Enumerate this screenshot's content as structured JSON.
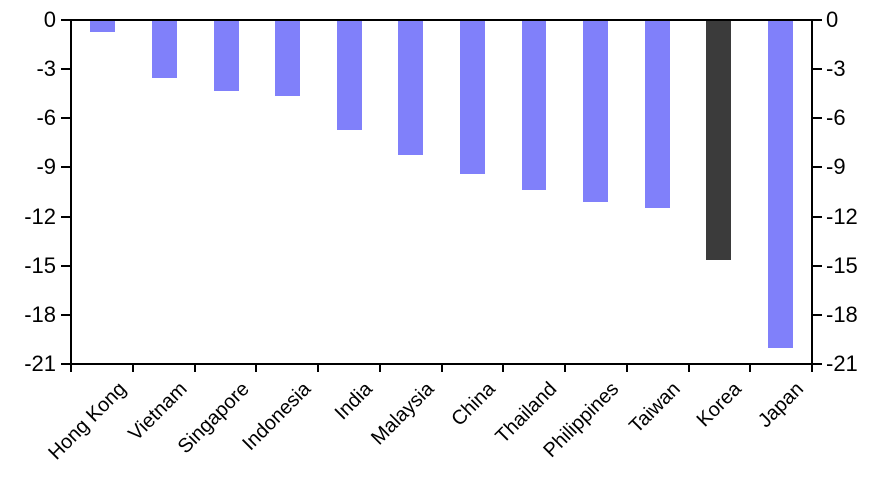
{
  "chart_data": {
    "type": "bar",
    "title": "",
    "xlabel": "",
    "ylabel": "",
    "categories": [
      "Hong Kong",
      "Vietnam",
      "Singapore",
      "Indonesia",
      "India",
      "Malaysia",
      "China",
      "Thailand",
      "Philippines",
      "Taiwan",
      "Korea",
      "Japan"
    ],
    "values": [
      -0.7,
      -3.5,
      -4.3,
      -4.6,
      -6.7,
      -8.2,
      -9.4,
      -10.4,
      -11.1,
      -11.5,
      -14.7,
      -20.1
    ],
    "ylim": [
      -21,
      0
    ],
    "yticks": [
      0,
      -3,
      -6,
      -9,
      -12,
      -15,
      -18,
      -21
    ],
    "ytick_labels": [
      "0",
      "-3",
      "-6",
      "-9",
      "-12",
      "-15",
      "-18",
      "-21"
    ],
    "dual_axis": true,
    "grid": false,
    "legend": false,
    "bar_color": "#8080FA",
    "highlight_category": "Korea",
    "highlight_color": "#3B3B3B",
    "axis_color": "#000000",
    "background_color": "#FFFFFF"
  }
}
